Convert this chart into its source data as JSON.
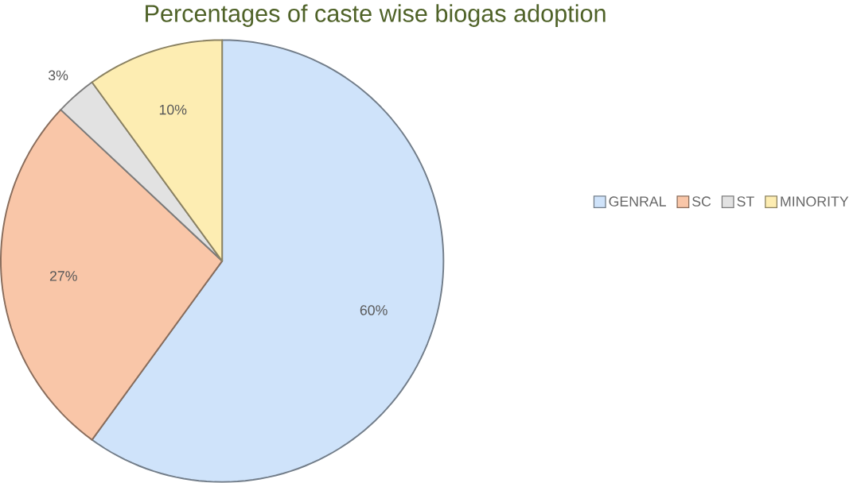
{
  "chart_data": {
    "type": "pie",
    "title": "Percentages of caste wise biogas adoption",
    "categories": [
      "GENRAL",
      "SC",
      "ST",
      "MINORITY"
    ],
    "values": [
      60,
      27,
      3,
      10
    ],
    "colors": [
      "#cfe3fa",
      "#f9c6a8",
      "#e2e2e2",
      "#fdedb2"
    ],
    "value_labels": [
      "60%",
      "27%",
      "3%",
      "10%"
    ],
    "legend": "right"
  }
}
